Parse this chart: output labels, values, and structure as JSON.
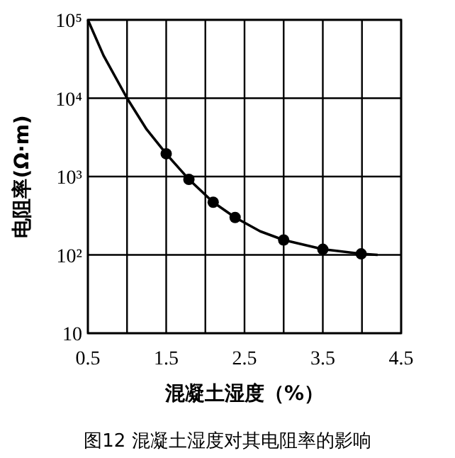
{
  "chart_data": {
    "type": "line",
    "title": "图12 混凝土湿度对其电阻率的影响",
    "xlabel": "混凝土湿度（%）",
    "ylabel": "电阻率(Ω·m)",
    "log": "y",
    "grid": true,
    "xlim": [
      0.5,
      4.5
    ],
    "xticks": [
      0.5,
      {
        "value": 1,
        "label": null
      },
      1.5,
      {
        "value": 2,
        "label": null
      },
      2.5,
      {
        "value": 3,
        "label": null
      },
      3.5,
      {
        "value": 4,
        "label": null
      },
      4.5
    ],
    "ylim": [
      10,
      100000
    ],
    "yticks": [
      10,
      {
        "value": 100,
        "label": "10²"
      },
      {
        "value": 1000,
        "label": "10³"
      },
      {
        "value": 10000,
        "label": "10⁴"
      },
      {
        "value": 100000,
        "label": "10⁵"
      }
    ],
    "series": [
      {
        "color": "#000000",
        "marker": "none",
        "x": [
          0.5,
          0.7,
          1.0,
          1.25,
          1.5,
          1.79,
          2.1,
          2.38,
          2.7,
          3.0,
          3.5,
          4.0,
          4.2
        ],
        "values": [
          100000,
          35000,
          10000,
          4000,
          1950,
          920,
          470,
          300,
          200,
          155,
          118,
          103,
          100
        ]
      },
      {
        "type": "scatter",
        "color": "#000000",
        "marker": "circle",
        "x": [
          1.5,
          1.79,
          2.1,
          2.38,
          3.0,
          3.5,
          3.99
        ],
        "values": [
          1950,
          920,
          470,
          300,
          155,
          118,
          103
        ]
      }
    ]
  }
}
